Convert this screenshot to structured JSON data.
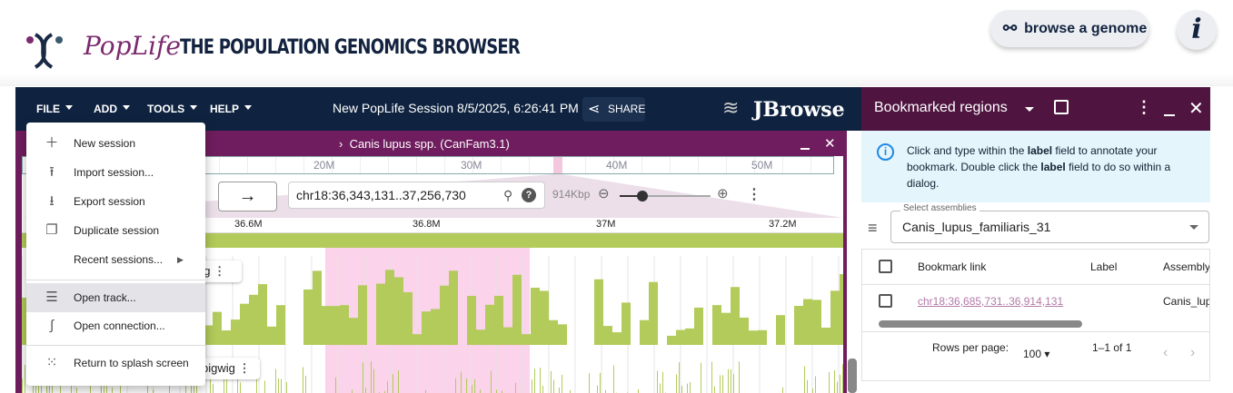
{
  "header": {
    "brand": "PopLife",
    "title": "THE POPULATION GENOMICS BROWSER",
    "browse_label": "browse a genome",
    "info_label": "i"
  },
  "appbar": {
    "menus": [
      "FILE",
      "ADD",
      "TOOLS",
      "HELP"
    ],
    "session_title": "New PopLife Session 8/5/2025, 6:26:41 PM",
    "share_label": "SHARE",
    "logo": "JBrowse"
  },
  "view": {
    "title": "Canis lupus spp. (CanFam3.1)",
    "overview_ticks": [
      "20M",
      "30M",
      "40M",
      "50M"
    ],
    "location": "chr18:36,343,131..37,256,730",
    "span": "914Kbp",
    "zoom_level": 0.15,
    "ruler_ticks": [
      "36.6M",
      "36.8M",
      "37M",
      "37.2M"
    ],
    "tracks": [
      {
        "label": "wig"
      },
      {
        "label": "bigwig"
      }
    ],
    "highlight_color": "#fbd3ea",
    "track_color": "#b2cb5a"
  },
  "file_menu": {
    "items": [
      {
        "label": "New session",
        "icon": "plus-icon"
      },
      {
        "label": "Import session...",
        "icon": "upload-icon"
      },
      {
        "label": "Export session",
        "icon": "download-icon"
      },
      {
        "label": "Duplicate session",
        "icon": "copy-icon"
      },
      {
        "label": "Recent sessions...",
        "icon": "chevron-right-icon"
      },
      {
        "label": "Open track...",
        "icon": "storage-icon",
        "highlighted": true
      },
      {
        "label": "Open connection...",
        "icon": "connection-icon"
      },
      {
        "label": "Return to splash screen",
        "icon": "grid-icon"
      }
    ]
  },
  "bookmarks": {
    "title": "Bookmarked regions",
    "info_pre": "Click and type within the ",
    "info_b1": "label",
    "info_mid": " field to annotate your bookmark. Double click the ",
    "info_b2": "label",
    "info_post": " field to do so within a dialog.",
    "select_label": "Select assemblies",
    "select_value": "Canis_lupus_familiaris_31",
    "columns": [
      "Bookmark link",
      "Label",
      "Assembly"
    ],
    "rows": [
      {
        "link": "chr18:36,685,731..36,914,131",
        "label": "",
        "assembly": "Canis_lup"
      }
    ],
    "rows_per_page_label": "Rows per page:",
    "rows_per_page": "100",
    "pagination": "1–1 of 1"
  }
}
